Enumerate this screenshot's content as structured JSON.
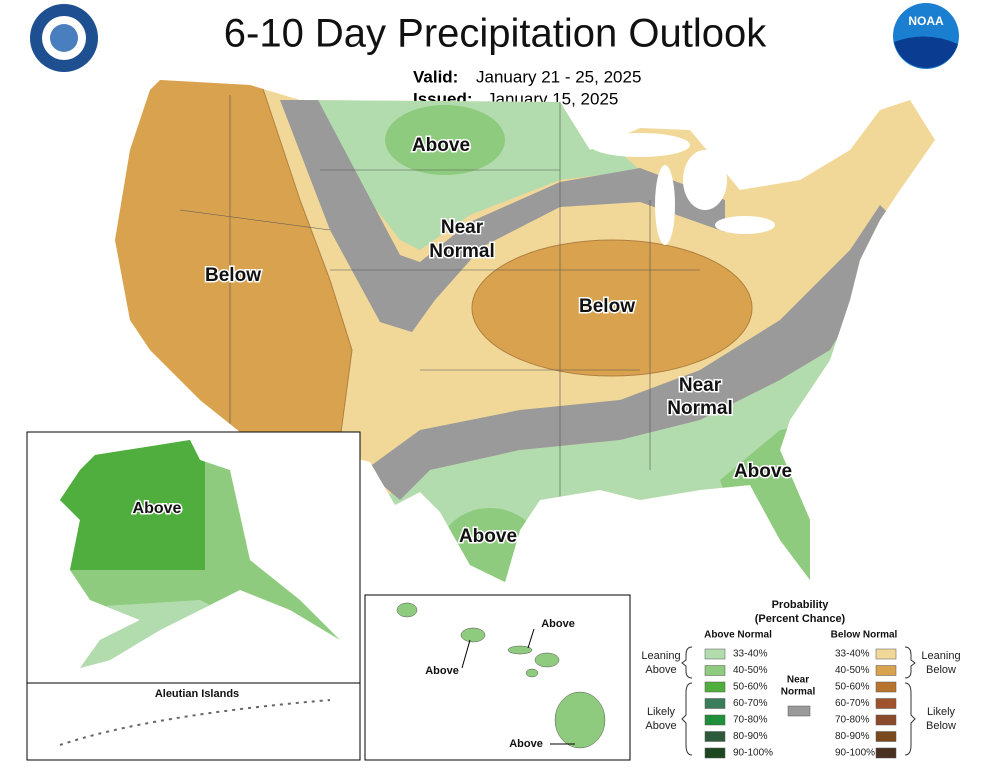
{
  "header": {
    "title": "6-10 Day Precipitation Outlook",
    "valid_label": "Valid:",
    "valid": "January 21 - 25, 2025",
    "issued_label": "Issued:",
    "issued": "January 15, 2025",
    "noaa": "NOAA"
  },
  "conus_labels": [
    [
      "Above"
    ],
    [
      "Near",
      "Normal"
    ],
    [
      "Below"
    ],
    [
      "Below"
    ],
    [
      "Near",
      "Normal"
    ],
    [
      "Above"
    ],
    [
      "Above"
    ]
  ],
  "alaska": {
    "label": "Above",
    "aleutian": "Aleutian Islands"
  },
  "hawaii": {
    "labels": [
      "Above",
      "Above",
      "Above"
    ]
  },
  "legend": {
    "title": "Probability",
    "subtitle": "(Percent Chance)",
    "above_heading": "Above Normal",
    "below_heading": "Below Normal",
    "near_normal": [
      "Near",
      "Normal"
    ],
    "near_color": "#9a9a9a",
    "leaning_above": [
      "Leaning",
      "Above"
    ],
    "likely_above": [
      "Likely",
      "Above"
    ],
    "leaning_below": [
      "Leaning",
      "Below"
    ],
    "likely_below": [
      "Likely",
      "Below"
    ],
    "above": [
      {
        "range": "33-40%",
        "color": "#b3dcae"
      },
      {
        "range": "40-50%",
        "color": "#8fcb7e"
      },
      {
        "range": "50-60%",
        "color": "#4fae3d"
      },
      {
        "range": "60-70%",
        "color": "#3a7d5b"
      },
      {
        "range": "70-80%",
        "color": "#1f8f3a"
      },
      {
        "range": "80-90%",
        "color": "#2d5a3a"
      },
      {
        "range": "90-100%",
        "color": "#1e4620"
      }
    ],
    "below": [
      {
        "range": "33-40%",
        "color": "#f2d898"
      },
      {
        "range": "40-50%",
        "color": "#d9a24f"
      },
      {
        "range": "50-60%",
        "color": "#b8742f"
      },
      {
        "range": "60-70%",
        "color": "#a0522d"
      },
      {
        "range": "70-80%",
        "color": "#8b4a2a"
      },
      {
        "range": "80-90%",
        "color": "#7a4a1e"
      },
      {
        "range": "90-100%",
        "color": "#4a3020"
      }
    ]
  }
}
